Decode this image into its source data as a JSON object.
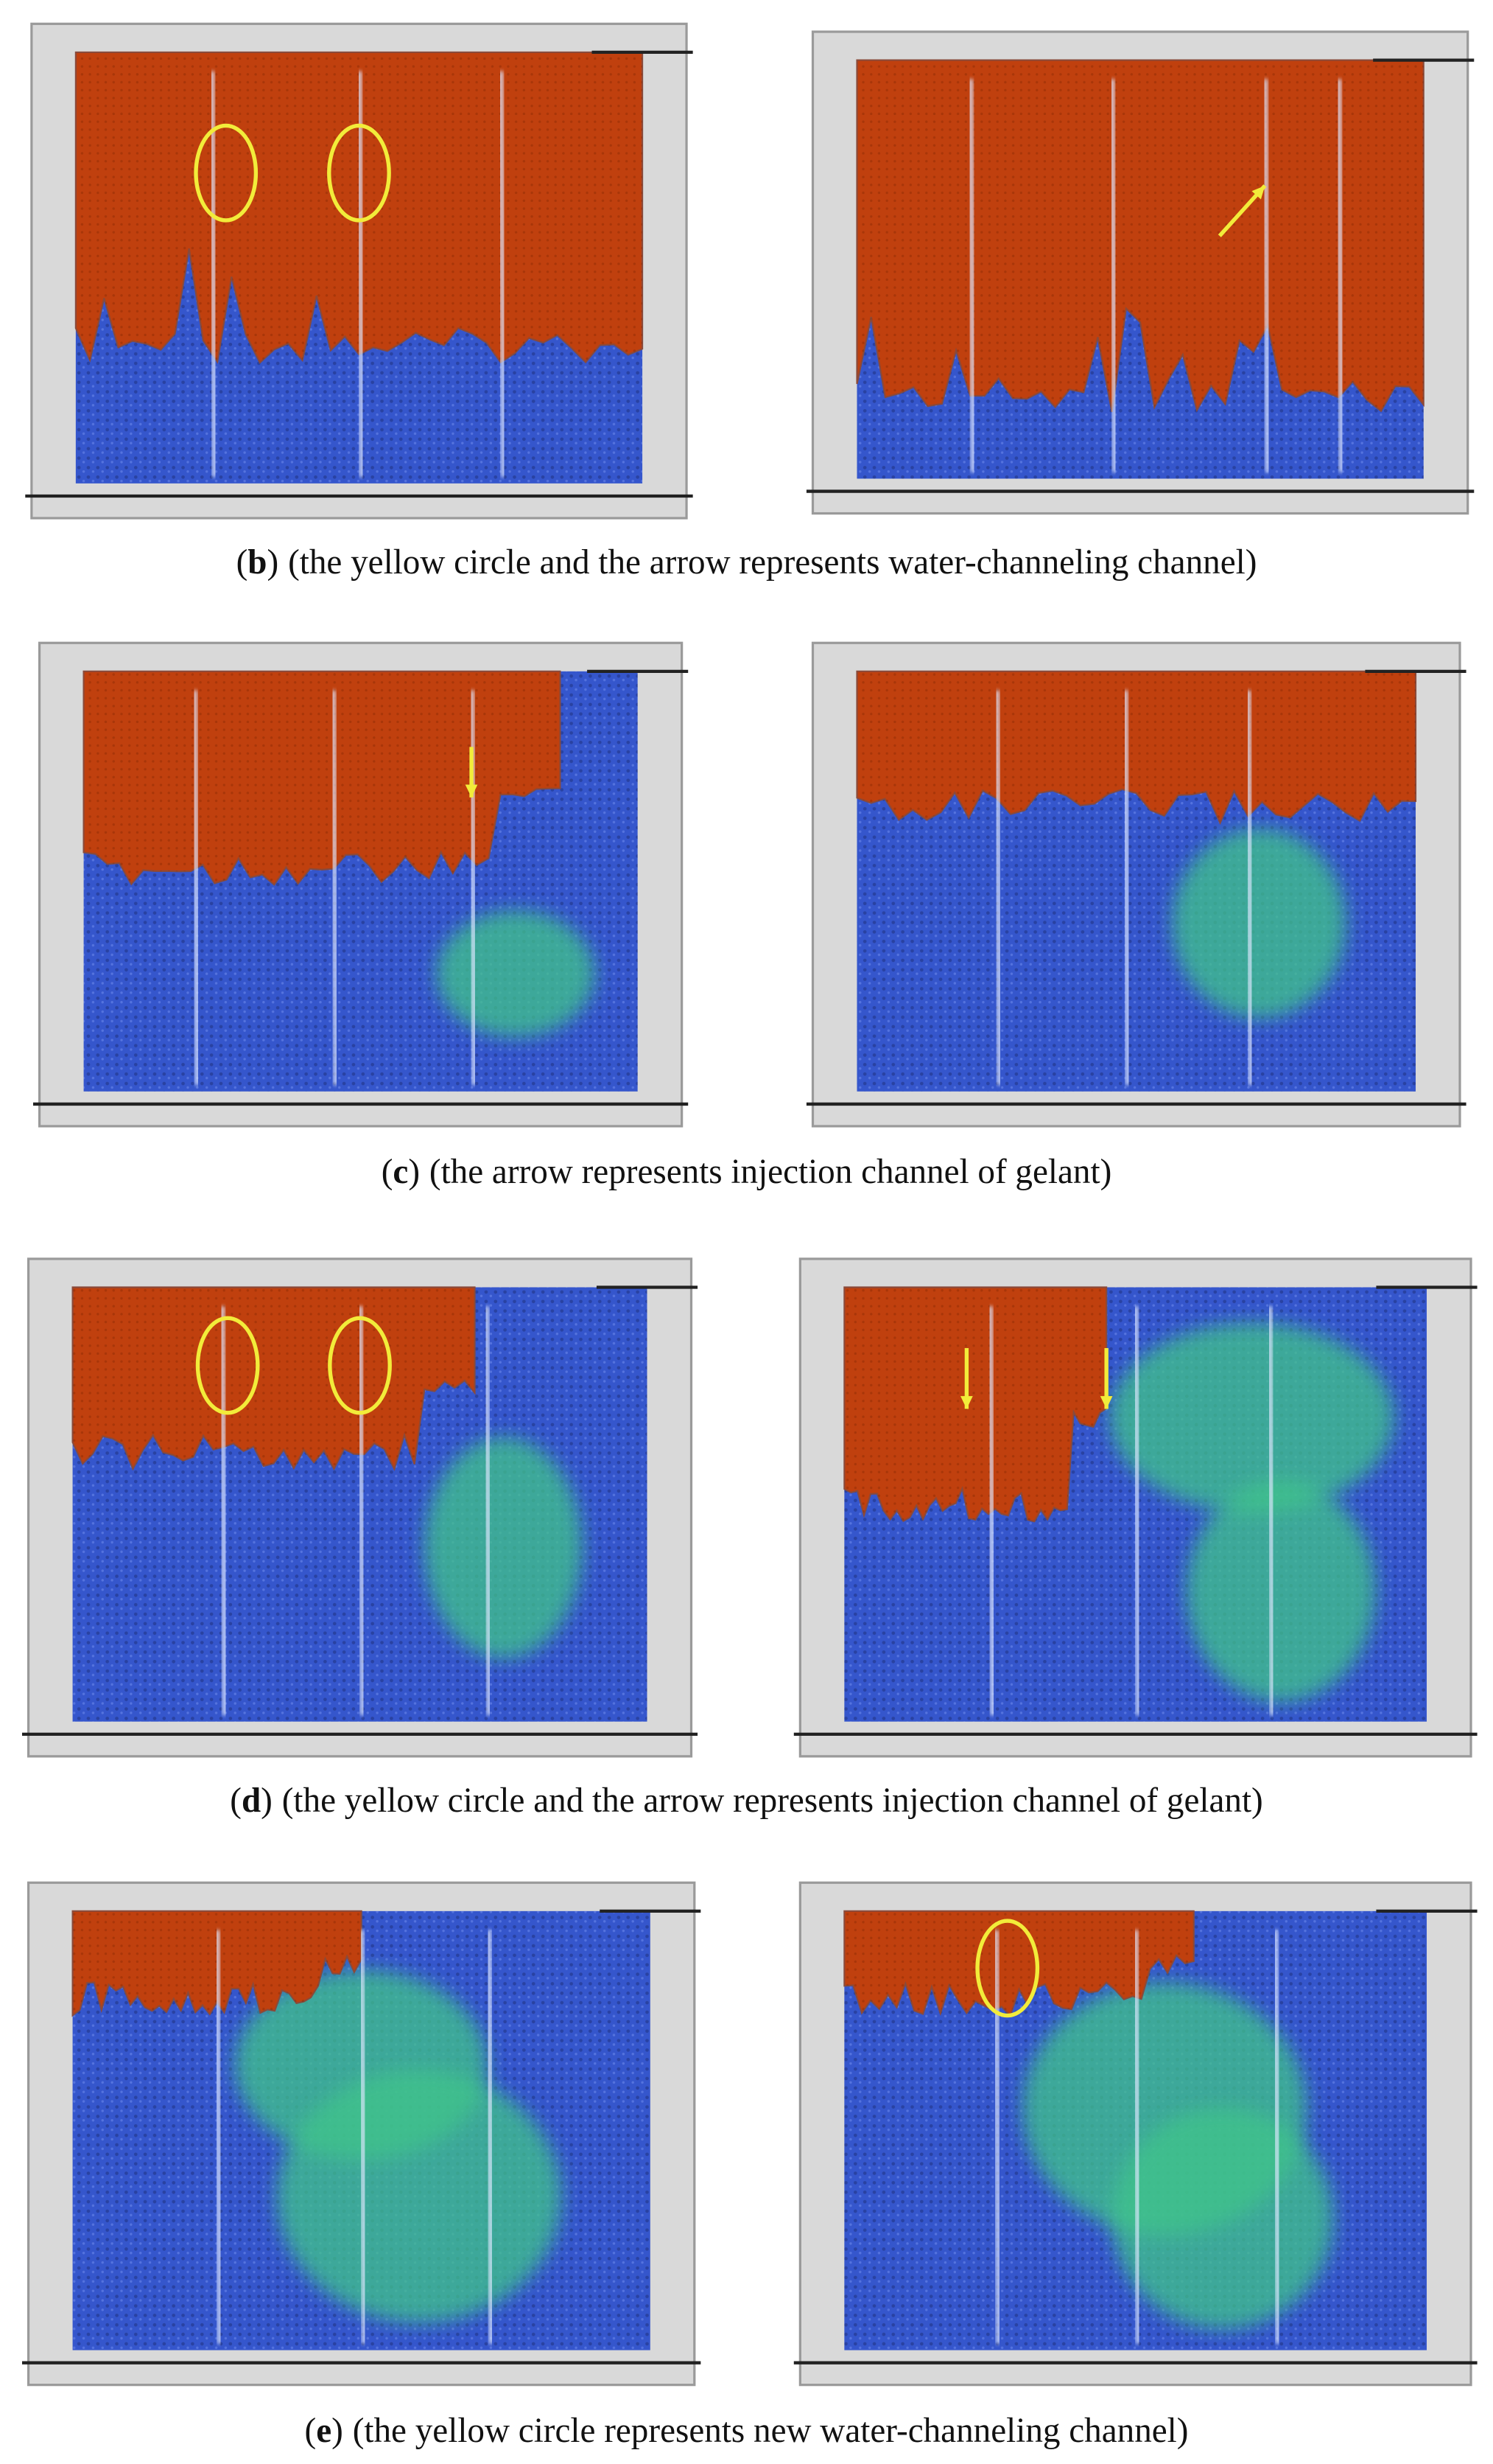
{
  "figure": {
    "panels": [
      {
        "label_open": "(",
        "label": "b",
        "label_close": ")",
        "caption": "(the yellow circle and the arrow represents water-channeling channel)"
      },
      {
        "label_open": "(",
        "label": "c",
        "label_close": ")",
        "caption": "(the arrow represents injection channel of gelant)"
      },
      {
        "label_open": "(",
        "label": "d",
        "label_close": ")",
        "caption": "(the yellow circle and the arrow represents injection channel of gelant)"
      },
      {
        "label_open": "(",
        "label": "e",
        "label_close": ")",
        "caption": "(the yellow circle represents new water-channeling channel)"
      }
    ]
  }
}
